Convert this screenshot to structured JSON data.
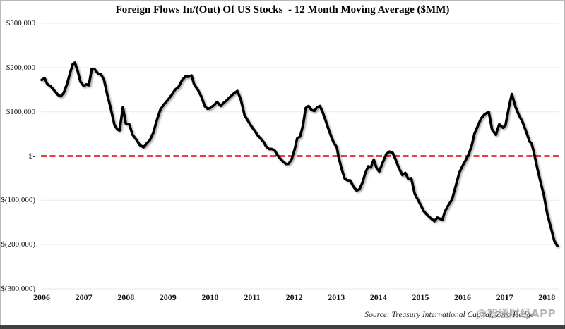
{
  "title": "Foreign Flows In/(Out) Of US Stocks  - 12 Month Moving Average ($MM)",
  "source": "Source: Treasury International Capital, Zero Hedge",
  "watermark": "@智通财经APP",
  "colors": {
    "line": "#000000",
    "zero_line": "#e10000",
    "gridline": "#f0ede3",
    "label_text": "#111111",
    "watermark_gray": "#9e9e9e",
    "bottom_bar": "#414141"
  },
  "chart_data": {
    "type": "line",
    "title": "Foreign Flows In/(Out) Of US Stocks  - 12 Month Moving Average ($MM)",
    "xlabel": "",
    "ylabel": "",
    "legend": null,
    "grid": "horizontal-only",
    "xlim": [
      2006.0,
      2018.45
    ],
    "ylim": [
      -300000,
      300000
    ],
    "x_ticks": [
      2006,
      2007,
      2008,
      2009,
      2010,
      2011,
      2012,
      2013,
      2014,
      2015,
      2016,
      2017,
      2018
    ],
    "y_ticks": [
      {
        "label": "$300,000",
        "value": 300000
      },
      {
        "label": "$200,000",
        "value": 200000
      },
      {
        "label": "$100,000",
        "value": 100000
      },
      {
        "label": "$-",
        "value": 0
      },
      {
        "label": "$(100,000)",
        "value": -100000
      },
      {
        "label": "$(200,000)",
        "value": -200000
      },
      {
        "label": "$(300,000)",
        "value": -300000
      }
    ],
    "zero_reference_line": {
      "value": 0,
      "style": "dashed",
      "color": "#e10000"
    },
    "series": [
      {
        "name": "Foreign flows into US stocks, 12-month moving average ($MM)",
        "color": "#000000",
        "points": [
          [
            2006.0,
            172000
          ],
          [
            2006.07,
            176000
          ],
          [
            2006.13,
            163000
          ],
          [
            2006.22,
            157000
          ],
          [
            2006.3,
            148000
          ],
          [
            2006.39,
            138000
          ],
          [
            2006.45,
            135000
          ],
          [
            2006.52,
            142000
          ],
          [
            2006.6,
            162000
          ],
          [
            2006.67,
            186000
          ],
          [
            2006.74,
            208000
          ],
          [
            2006.79,
            211000
          ],
          [
            2006.86,
            190000
          ],
          [
            2006.92,
            168000
          ],
          [
            2007.0,
            158000
          ],
          [
            2007.06,
            162000
          ],
          [
            2007.12,
            160000
          ],
          [
            2007.19,
            197000
          ],
          [
            2007.26,
            196000
          ],
          [
            2007.34,
            186000
          ],
          [
            2007.41,
            185000
          ],
          [
            2007.48,
            172000
          ],
          [
            2007.56,
            138000
          ],
          [
            2007.64,
            108000
          ],
          [
            2007.73,
            70000
          ],
          [
            2007.8,
            60000
          ],
          [
            2007.85,
            58000
          ],
          [
            2007.93,
            110000
          ],
          [
            2008.0,
            73000
          ],
          [
            2008.08,
            72000
          ],
          [
            2008.16,
            48000
          ],
          [
            2008.25,
            37000
          ],
          [
            2008.33,
            25000
          ],
          [
            2008.42,
            20000
          ],
          [
            2008.5,
            29000
          ],
          [
            2008.57,
            36000
          ],
          [
            2008.65,
            52000
          ],
          [
            2008.74,
            82000
          ],
          [
            2008.82,
            105000
          ],
          [
            2008.9,
            116000
          ],
          [
            2009.0,
            127000
          ],
          [
            2009.08,
            137000
          ],
          [
            2009.17,
            150000
          ],
          [
            2009.25,
            156000
          ],
          [
            2009.34,
            172000
          ],
          [
            2009.42,
            180000
          ],
          [
            2009.49,
            179000
          ],
          [
            2009.56,
            182000
          ],
          [
            2009.62,
            162000
          ],
          [
            2009.71,
            150000
          ],
          [
            2009.79,
            135000
          ],
          [
            2009.88,
            112000
          ],
          [
            2009.94,
            107000
          ],
          [
            2010.0,
            108000
          ],
          [
            2010.08,
            114000
          ],
          [
            2010.17,
            122000
          ],
          [
            2010.25,
            113000
          ],
          [
            2010.31,
            119000
          ],
          [
            2010.4,
            126000
          ],
          [
            2010.48,
            134000
          ],
          [
            2010.56,
            141000
          ],
          [
            2010.65,
            147000
          ],
          [
            2010.73,
            128000
          ],
          [
            2010.82,
            92000
          ],
          [
            2010.9,
            80000
          ],
          [
            2010.95,
            72000
          ],
          [
            2011.0,
            65000
          ],
          [
            2011.07,
            56000
          ],
          [
            2011.13,
            47000
          ],
          [
            2011.2,
            40000
          ],
          [
            2011.27,
            32000
          ],
          [
            2011.33,
            22000
          ],
          [
            2011.4,
            16000
          ],
          [
            2011.47,
            16000
          ],
          [
            2011.54,
            12000
          ],
          [
            2011.6,
            2000
          ],
          [
            2011.67,
            -6000
          ],
          [
            2011.74,
            -13000
          ],
          [
            2011.81,
            -18000
          ],
          [
            2011.87,
            -17000
          ],
          [
            2011.94,
            -7000
          ],
          [
            2012.01,
            15000
          ],
          [
            2012.07,
            40000
          ],
          [
            2012.14,
            44000
          ],
          [
            2012.21,
            70000
          ],
          [
            2012.27,
            108000
          ],
          [
            2012.34,
            113000
          ],
          [
            2012.41,
            104000
          ],
          [
            2012.48,
            102000
          ],
          [
            2012.54,
            110000
          ],
          [
            2012.61,
            113000
          ],
          [
            2012.68,
            98000
          ],
          [
            2012.74,
            82000
          ],
          [
            2012.81,
            62000
          ],
          [
            2012.88,
            44000
          ],
          [
            2012.94,
            30000
          ],
          [
            2013.01,
            20000
          ],
          [
            2013.06,
            -5000
          ],
          [
            2013.13,
            -30000
          ],
          [
            2013.2,
            -51000
          ],
          [
            2013.27,
            -55000
          ],
          [
            2013.33,
            -55000
          ],
          [
            2013.4,
            -68000
          ],
          [
            2013.48,
            -78000
          ],
          [
            2013.55,
            -75000
          ],
          [
            2013.62,
            -60000
          ],
          [
            2013.69,
            -38000
          ],
          [
            2013.76,
            -23000
          ],
          [
            2013.82,
            -26000
          ],
          [
            2013.89,
            -8000
          ],
          [
            2013.96,
            -28000
          ],
          [
            2014.02,
            -35000
          ],
          [
            2014.1,
            -15000
          ],
          [
            2014.19,
            5000
          ],
          [
            2014.26,
            10000
          ],
          [
            2014.34,
            7000
          ],
          [
            2014.41,
            -8000
          ],
          [
            2014.49,
            -28000
          ],
          [
            2014.57,
            -43000
          ],
          [
            2014.64,
            -38000
          ],
          [
            2014.71,
            -52000
          ],
          [
            2014.78,
            -50000
          ],
          [
            2014.86,
            -85000
          ],
          [
            2014.94,
            -99000
          ],
          [
            2015.0,
            -110000
          ],
          [
            2015.08,
            -125000
          ],
          [
            2015.17,
            -134000
          ],
          [
            2015.25,
            -141000
          ],
          [
            2015.33,
            -147000
          ],
          [
            2015.4,
            -139000
          ],
          [
            2015.47,
            -142000
          ],
          [
            2015.52,
            -144000
          ],
          [
            2015.58,
            -125000
          ],
          [
            2015.67,
            -110000
          ],
          [
            2015.75,
            -98000
          ],
          [
            2015.83,
            -70000
          ],
          [
            2015.92,
            -38000
          ],
          [
            2016.0,
            -22000
          ],
          [
            2016.08,
            -8000
          ],
          [
            2016.15,
            5000
          ],
          [
            2016.22,
            25000
          ],
          [
            2016.28,
            50000
          ],
          [
            2016.37,
            70000
          ],
          [
            2016.44,
            85000
          ],
          [
            2016.52,
            94000
          ],
          [
            2016.62,
            100000
          ],
          [
            2016.7,
            60000
          ],
          [
            2016.79,
            48000
          ],
          [
            2016.87,
            72000
          ],
          [
            2016.96,
            64000
          ],
          [
            2017.02,
            70000
          ],
          [
            2017.11,
            115000
          ],
          [
            2017.17,
            140000
          ],
          [
            2017.26,
            110000
          ],
          [
            2017.34,
            92000
          ],
          [
            2017.42,
            78000
          ],
          [
            2017.51,
            55000
          ],
          [
            2017.59,
            33000
          ],
          [
            2017.64,
            28000
          ],
          [
            2017.69,
            10000
          ],
          [
            2017.78,
            -30000
          ],
          [
            2017.86,
            -62000
          ],
          [
            2017.93,
            -88000
          ],
          [
            2018.01,
            -130000
          ],
          [
            2018.1,
            -163000
          ],
          [
            2018.18,
            -192000
          ],
          [
            2018.25,
            -203000
          ]
        ]
      }
    ]
  }
}
